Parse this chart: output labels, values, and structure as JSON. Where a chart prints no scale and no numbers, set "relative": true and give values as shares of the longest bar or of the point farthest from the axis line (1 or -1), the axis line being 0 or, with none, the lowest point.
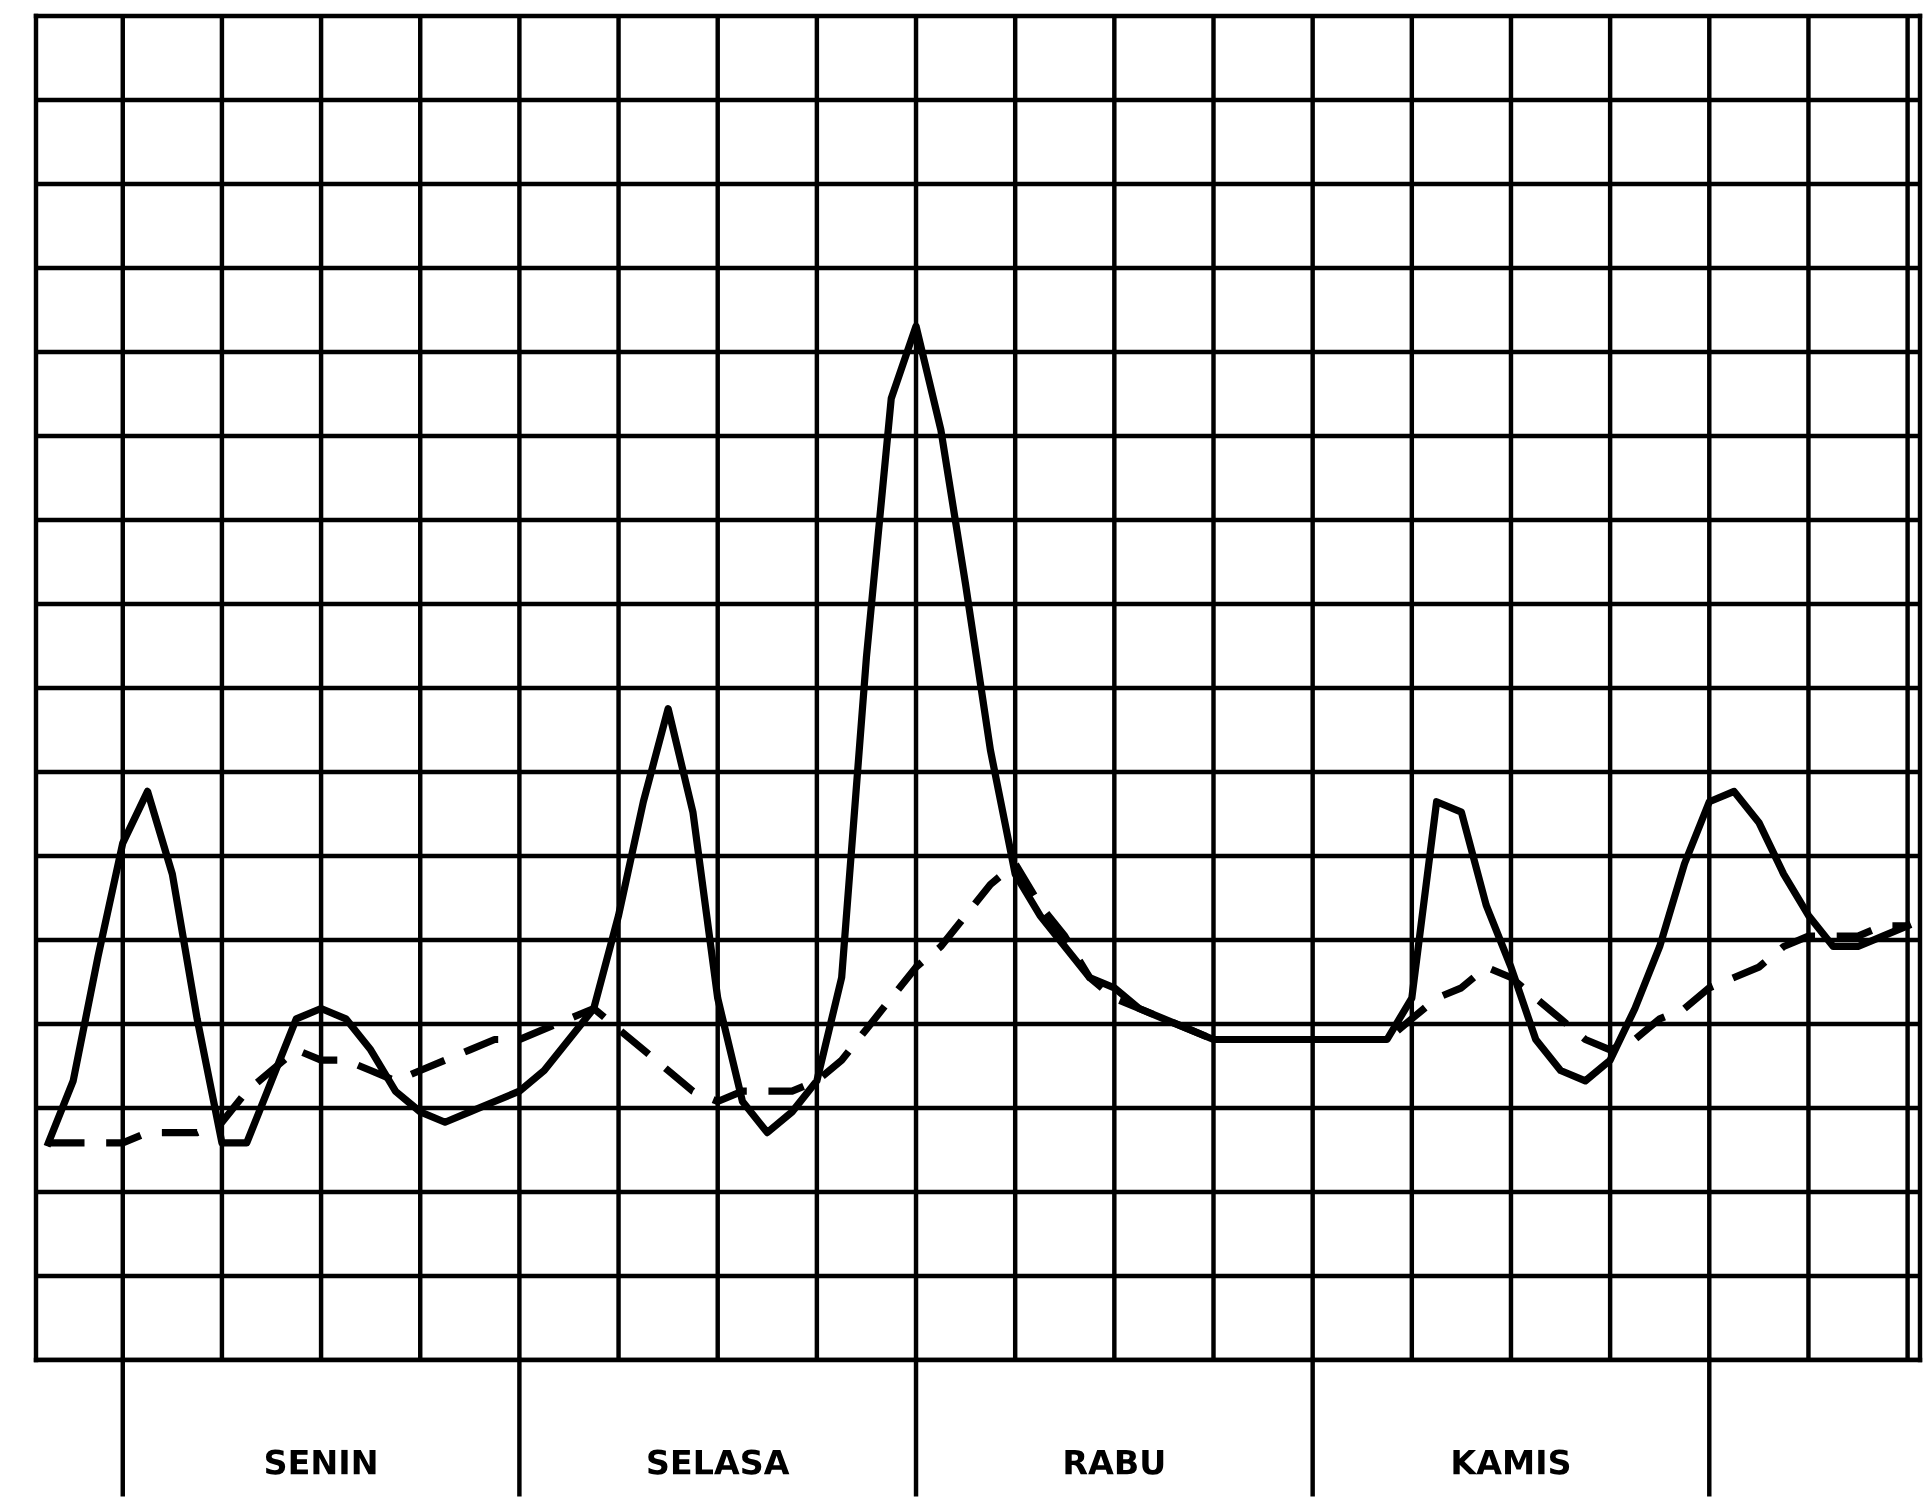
{
  "chart_data": {
    "type": "line",
    "relative": true,
    "grid": true,
    "categories": [
      null,
      null,
      null,
      null,
      null,
      null,
      null,
      null,
      null,
      null,
      null,
      "SENIN",
      null,
      null,
      null,
      null,
      null,
      null,
      null,
      null,
      null,
      null,
      null,
      null,
      null,
      null,
      null,
      "SELASA",
      null,
      null,
      null,
      null,
      null,
      null,
      null,
      null,
      null,
      null,
      null,
      null,
      null,
      null,
      null,
      "RABU",
      null,
      null,
      null,
      null,
      null,
      null,
      null,
      null,
      null,
      null,
      null,
      null,
      null,
      null,
      null,
      "KAMIS",
      null,
      null,
      null,
      null,
      null,
      null,
      null,
      null,
      null,
      null,
      null,
      null,
      null,
      null,
      null,
      null
    ],
    "series": [
      {
        "color": "#000000",
        "line_style": "solid",
        "values": [
          0.21,
          0.27,
          0.39,
          0.5,
          0.55,
          0.47,
          0.33,
          0.21,
          0.21,
          0.27,
          0.33,
          0.34,
          0.33,
          0.3,
          0.26,
          0.24,
          0.23,
          0.24,
          0.25,
          0.26,
          0.28,
          0.31,
          0.34,
          0.43,
          0.54,
          0.63,
          0.53,
          0.35,
          0.25,
          0.22,
          0.24,
          0.27,
          0.37,
          0.68,
          0.93,
          1.0,
          0.9,
          0.75,
          0.59,
          0.47,
          0.43,
          0.4,
          0.37,
          0.36,
          0.34,
          0.33,
          0.32,
          0.31,
          0.31,
          0.31,
          0.31,
          0.31,
          0.31,
          0.31,
          0.31,
          0.35,
          0.54,
          0.53,
          0.44,
          0.38,
          0.31,
          0.28,
          0.27,
          0.29,
          0.34,
          0.4,
          0.48,
          0.54,
          0.55,
          0.52,
          0.47,
          0.43,
          0.4,
          0.4,
          0.41,
          0.42
        ]
      },
      {
        "color": "#000000",
        "line_style": "dashed",
        "values": [
          0.21,
          0.21,
          0.21,
          0.21,
          0.22,
          0.22,
          0.22,
          0.23,
          0.26,
          0.28,
          0.3,
          0.29,
          0.29,
          0.28,
          0.27,
          0.28,
          0.29,
          0.3,
          0.31,
          0.31,
          0.32,
          0.33,
          0.34,
          0.32,
          0.3,
          0.28,
          0.26,
          0.25,
          0.26,
          0.26,
          0.26,
          0.27,
          0.29,
          0.32,
          0.35,
          0.38,
          0.4,
          0.43,
          0.46,
          0.48,
          0.44,
          0.41,
          0.37,
          0.35,
          0.34,
          0.33,
          0.32,
          0.31,
          0.31,
          0.31,
          0.31,
          0.31,
          0.31,
          0.31,
          0.31,
          0.33,
          0.35,
          0.36,
          0.38,
          0.37,
          0.35,
          0.33,
          0.31,
          0.3,
          0.31,
          0.33,
          0.34,
          0.36,
          0.37,
          0.38,
          0.4,
          0.41,
          0.41,
          0.41,
          0.42,
          0.42
        ]
      }
    ]
  }
}
